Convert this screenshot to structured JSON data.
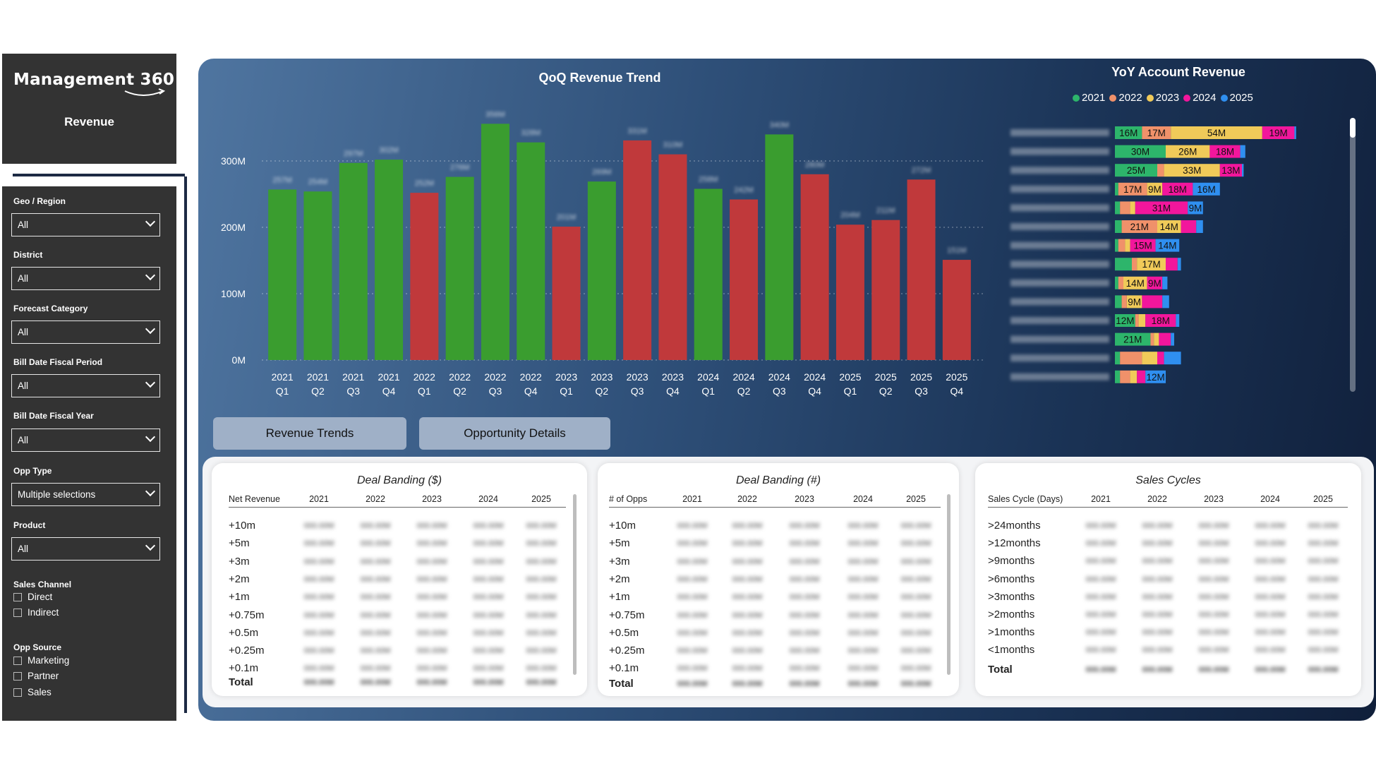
{
  "app": {
    "title": "Management 360",
    "subtitle": "Revenue"
  },
  "filters": [
    {
      "label": "Geo / Region",
      "value": "All"
    },
    {
      "label": "District",
      "value": "All"
    },
    {
      "label": "Forecast Category",
      "value": "All"
    },
    {
      "label": "Bill Date Fiscal Period",
      "value": "All"
    },
    {
      "label": "Bill Date Fiscal Year",
      "value": "All"
    },
    {
      "label": "Opp Type",
      "value": "Multiple selections"
    },
    {
      "label": "Product",
      "value": "All"
    }
  ],
  "checkgroups": [
    {
      "label": "Sales Channel",
      "options": [
        "Direct",
        "Indirect"
      ]
    },
    {
      "label": "Opp Source",
      "options": [
        "Marketing",
        "Partner",
        "Sales"
      ]
    }
  ],
  "tabs": [
    {
      "label": "Revenue Trends"
    },
    {
      "label": "Opportunity Details"
    }
  ],
  "colors": {
    "green": "#3a9d2f",
    "red": "#c0393b",
    "y2021": "#2db56b",
    "y2022": "#f0916a",
    "y2023": "#f0ca59",
    "y2024": "#f2169c",
    "y2025": "#2f8ff0"
  },
  "chart_data": [
    {
      "type": "bar",
      "title": "QoQ Revenue Trend",
      "ylim": [
        0,
        360
      ],
      "yticks": [
        "0M",
        "100M",
        "200M",
        "300M"
      ],
      "ytick_values": [
        0,
        100,
        200,
        300
      ],
      "categories": [
        [
          "2021",
          "Q1"
        ],
        [
          "2021",
          "Q2"
        ],
        [
          "2021",
          "Q3"
        ],
        [
          "2021",
          "Q4"
        ],
        [
          "2022",
          "Q1"
        ],
        [
          "2022",
          "Q2"
        ],
        [
          "2022",
          "Q3"
        ],
        [
          "2022",
          "Q4"
        ],
        [
          "2023",
          "Q1"
        ],
        [
          "2023",
          "Q2"
        ],
        [
          "2023",
          "Q3"
        ],
        [
          "2023",
          "Q4"
        ],
        [
          "2024",
          "Q1"
        ],
        [
          "2024",
          "Q2"
        ],
        [
          "2024",
          "Q3"
        ],
        [
          "2024",
          "Q4"
        ],
        [
          "2025",
          "Q1"
        ],
        [
          "2025",
          "Q2"
        ],
        [
          "2025",
          "Q3"
        ],
        [
          "2025",
          "Q4"
        ]
      ],
      "values": [
        257,
        254,
        297,
        302,
        252,
        276,
        356,
        328,
        201,
        269,
        331,
        310,
        258,
        242,
        340,
        280,
        204,
        211,
        272,
        151
      ],
      "status": [
        "g",
        "g",
        "g",
        "g",
        "r",
        "g",
        "g",
        "g",
        "r",
        "g",
        "r",
        "r",
        "g",
        "r",
        "g",
        "r",
        "r",
        "r",
        "r",
        "r"
      ]
    },
    {
      "type": "bar",
      "orientation": "horizontal-stacked",
      "title": "YoY Account Revenue",
      "legend": [
        "2021",
        "2022",
        "2023",
        "2024",
        "2025"
      ],
      "rows": [
        {
          "values": [
            16,
            17,
            54,
            19,
            1
          ],
          "labels": [
            "16M",
            "17M",
            "54M",
            "19M",
            ""
          ]
        },
        {
          "values": [
            30,
            0,
            26,
            18,
            3
          ],
          "labels": [
            "30M",
            "",
            "26M",
            "18M",
            ""
          ]
        },
        {
          "values": [
            25,
            4,
            33,
            13,
            1
          ],
          "labels": [
            "25M",
            "",
            "33M",
            "13M",
            ""
          ]
        },
        {
          "values": [
            2,
            17,
            9,
            18,
            16
          ],
          "labels": [
            "",
            "17M",
            "9M",
            "18M",
            "16M"
          ]
        },
        {
          "values": [
            3,
            6,
            3,
            31,
            9
          ],
          "labels": [
            "",
            "",
            "",
            "31M",
            "9M"
          ]
        },
        {
          "values": [
            4,
            21,
            14,
            9,
            4
          ],
          "labels": [
            "",
            "21M",
            "14M",
            "",
            ""
          ]
        },
        {
          "values": [
            2,
            4,
            3,
            15,
            14
          ],
          "labels": [
            "",
            "",
            "",
            "15M",
            "14M"
          ]
        },
        {
          "values": [
            10,
            3,
            17,
            7,
            2
          ],
          "labels": [
            "",
            "",
            "17M",
            "",
            ""
          ]
        },
        {
          "values": [
            2,
            3,
            14,
            9,
            3
          ],
          "labels": [
            "",
            "",
            "14M",
            "9M",
            ""
          ]
        },
        {
          "values": [
            4,
            3,
            9,
            12,
            4
          ],
          "labels": [
            "",
            "",
            "9M",
            "",
            ""
          ]
        },
        {
          "values": [
            12,
            2,
            4,
            18,
            2
          ],
          "labels": [
            "12M",
            "",
            "",
            "18M",
            ""
          ]
        },
        {
          "values": [
            21,
            2,
            3,
            7,
            2
          ],
          "labels": [
            "21M",
            "",
            "",
            "",
            ""
          ]
        },
        {
          "values": [
            3,
            13,
            9,
            4,
            10
          ],
          "labels": [
            "",
            "",
            "",
            "",
            ""
          ]
        },
        {
          "values": [
            3,
            6,
            4,
            5,
            12
          ],
          "labels": [
            "",
            "",
            "",
            "",
            "12M"
          ]
        }
      ]
    }
  ],
  "deal_banding_dollar": {
    "title": "Deal Banding ($)",
    "header": "Net Revenue",
    "years": [
      "2021",
      "2022",
      "2023",
      "2024",
      "2025"
    ],
    "rows": [
      "+10m",
      "+5m",
      "+3m",
      "+2m",
      "+1m",
      "+0.75m",
      "+0.5m",
      "+0.25m",
      "+0.1m"
    ],
    "total_label": "Total"
  },
  "deal_banding_count": {
    "title": "Deal Banding (#)",
    "header": "# of Opps",
    "years": [
      "2021",
      "2022",
      "2023",
      "2024",
      "2025"
    ],
    "rows": [
      "+10m",
      "+5m",
      "+3m",
      "+2m",
      "+1m",
      "+0.75m",
      "+0.5m",
      "+0.25m",
      "+0.1m"
    ],
    "total_label": "Total"
  },
  "sales_cycles": {
    "title": "Sales Cycles",
    "header": "Sales Cycle (Days)",
    "years": [
      "2021",
      "2022",
      "2023",
      "2024",
      "2025"
    ],
    "rows": [
      ">24months",
      ">12months",
      ">9months",
      ">6months",
      ">3months",
      ">2months",
      ">1months",
      "<1months"
    ],
    "total_label": "Total"
  }
}
